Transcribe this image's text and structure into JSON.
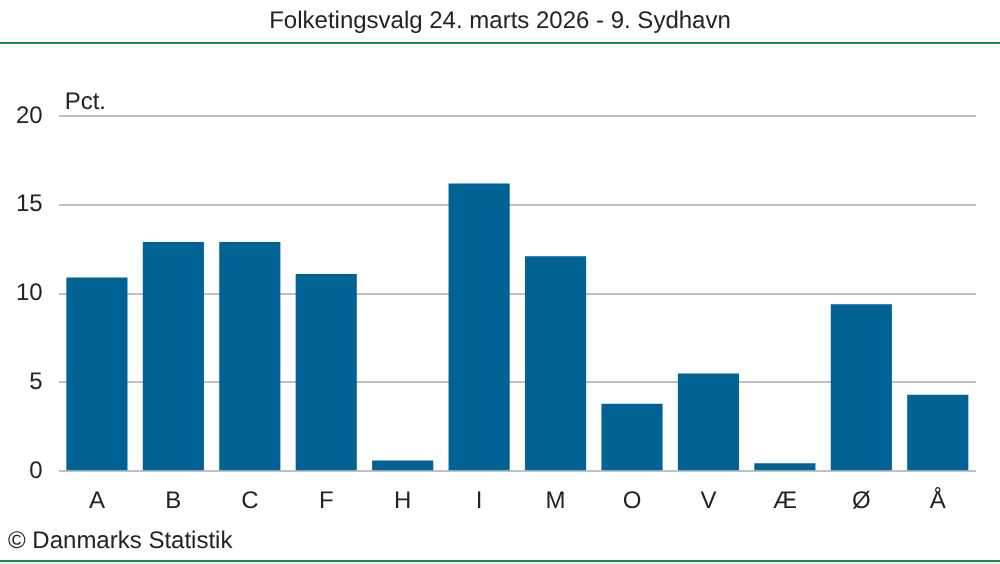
{
  "chart_data": {
    "type": "bar",
    "title": "Folketingsvalg 24. marts 2026 - 9. Sydhavn",
    "ylabel": "Pct.",
    "categories": [
      "A",
      "B",
      "C",
      "F",
      "H",
      "I",
      "M",
      "O",
      "V",
      "Æ",
      "Ø",
      "Å"
    ],
    "values": [
      10.9,
      12.9,
      12.9,
      11.1,
      0.6,
      16.2,
      12.1,
      3.8,
      5.5,
      0.45,
      9.4,
      4.3
    ],
    "color": "#006394",
    "ylim": [
      0,
      20
    ],
    "yticks": [
      0,
      5,
      10,
      15,
      20
    ],
    "grid": "y",
    "annotations": [
      "© Danmarks Statistik"
    ]
  }
}
